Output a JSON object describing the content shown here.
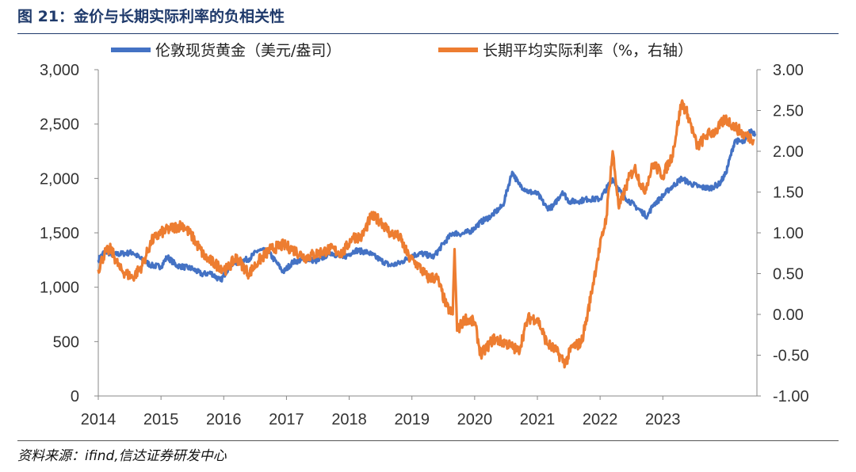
{
  "figure": {
    "title": "图 21：金价与长期实际利率的负相关性",
    "source": "资料来源：ifind,信达证券研发中心"
  },
  "chart_data": {
    "type": "line",
    "x_ticks": [
      "2014",
      "2015",
      "2016",
      "2017",
      "2018",
      "2019",
      "2020",
      "2021",
      "2022",
      "2023"
    ],
    "y_left": {
      "min": 0,
      "max": 3000,
      "ticks": [
        "0",
        "500",
        "1,000",
        "1,500",
        "2,000",
        "2,500",
        "3,000"
      ]
    },
    "y_right": {
      "min": -1.0,
      "max": 3.0,
      "ticks": [
        "-1.00",
        "-0.50",
        "0.00",
        "0.50",
        "1.00",
        "1.50",
        "2.00",
        "2.50",
        "3.00"
      ]
    },
    "legend_position": "top",
    "grid": false,
    "series": [
      {
        "name": "伦敦现货黄金（美元/盎司）",
        "axis": "left",
        "color": "#4472c4",
        "points": [
          [
            2014.0,
            1250
          ],
          [
            2014.1,
            1330
          ],
          [
            2014.25,
            1300
          ],
          [
            2014.4,
            1310
          ],
          [
            2014.55,
            1320
          ],
          [
            2014.7,
            1250
          ],
          [
            2014.85,
            1200
          ],
          [
            2015.0,
            1190
          ],
          [
            2015.1,
            1280
          ],
          [
            2015.25,
            1200
          ],
          [
            2015.5,
            1170
          ],
          [
            2015.65,
            1120
          ],
          [
            2015.8,
            1130
          ],
          [
            2015.95,
            1060
          ],
          [
            2016.1,
            1200
          ],
          [
            2016.25,
            1240
          ],
          [
            2016.4,
            1260
          ],
          [
            2016.55,
            1340
          ],
          [
            2016.7,
            1330
          ],
          [
            2016.85,
            1220
          ],
          [
            2016.95,
            1140
          ],
          [
            2017.1,
            1230
          ],
          [
            2017.3,
            1260
          ],
          [
            2017.5,
            1240
          ],
          [
            2017.7,
            1320
          ],
          [
            2017.9,
            1270
          ],
          [
            2018.1,
            1340
          ],
          [
            2018.3,
            1320
          ],
          [
            2018.5,
            1250
          ],
          [
            2018.65,
            1200
          ],
          [
            2018.8,
            1220
          ],
          [
            2019.0,
            1290
          ],
          [
            2019.15,
            1310
          ],
          [
            2019.35,
            1280
          ],
          [
            2019.5,
            1400
          ],
          [
            2019.65,
            1500
          ],
          [
            2019.8,
            1490
          ],
          [
            2019.95,
            1520
          ],
          [
            2020.1,
            1600
          ],
          [
            2020.25,
            1650
          ],
          [
            2020.45,
            1750
          ],
          [
            2020.6,
            2060
          ],
          [
            2020.7,
            1950
          ],
          [
            2020.85,
            1880
          ],
          [
            2021.0,
            1860
          ],
          [
            2021.15,
            1730
          ],
          [
            2021.25,
            1740
          ],
          [
            2021.4,
            1880
          ],
          [
            2021.5,
            1790
          ],
          [
            2021.65,
            1790
          ],
          [
            2021.8,
            1810
          ],
          [
            2022.0,
            1810
          ],
          [
            2022.2,
            2000
          ],
          [
            2022.35,
            1850
          ],
          [
            2022.55,
            1750
          ],
          [
            2022.75,
            1650
          ],
          [
            2022.85,
            1760
          ],
          [
            2022.95,
            1810
          ],
          [
            2023.1,
            1900
          ],
          [
            2023.3,
            2000
          ],
          [
            2023.45,
            1950
          ],
          [
            2023.6,
            1920
          ],
          [
            2023.75,
            1910
          ],
          [
            2023.9,
            1950
          ],
          [
            2024.0,
            2040
          ],
          [
            2024.15,
            2350
          ],
          [
            2024.3,
            2330
          ],
          [
            2024.4,
            2440
          ],
          [
            2024.48,
            2410
          ]
        ]
      },
      {
        "name": "长期平均实际利率（%，右轴）",
        "axis": "right",
        "color": "#ed7d31",
        "points": [
          [
            2014.0,
            0.55
          ],
          [
            2014.1,
            0.75
          ],
          [
            2014.2,
            0.8
          ],
          [
            2014.35,
            0.55
          ],
          [
            2014.55,
            0.45
          ],
          [
            2014.7,
            0.6
          ],
          [
            2014.85,
            0.9
          ],
          [
            2015.0,
            1.0
          ],
          [
            2015.15,
            1.05
          ],
          [
            2015.35,
            1.1
          ],
          [
            2015.5,
            0.95
          ],
          [
            2015.7,
            0.7
          ],
          [
            2015.9,
            0.6
          ],
          [
            2016.05,
            0.55
          ],
          [
            2016.2,
            0.7
          ],
          [
            2016.4,
            0.5
          ],
          [
            2016.55,
            0.65
          ],
          [
            2016.75,
            0.8
          ],
          [
            2016.95,
            0.85
          ],
          [
            2017.1,
            0.8
          ],
          [
            2017.3,
            0.7
          ],
          [
            2017.5,
            0.75
          ],
          [
            2017.7,
            0.8
          ],
          [
            2017.9,
            0.75
          ],
          [
            2018.05,
            0.95
          ],
          [
            2018.2,
            0.95
          ],
          [
            2018.35,
            1.2
          ],
          [
            2018.5,
            1.15
          ],
          [
            2018.65,
            1.0
          ],
          [
            2018.8,
            0.95
          ],
          [
            2018.95,
            0.7
          ],
          [
            2019.1,
            0.6
          ],
          [
            2019.25,
            0.45
          ],
          [
            2019.4,
            0.45
          ],
          [
            2019.55,
            0.1
          ],
          [
            2019.65,
            0.0
          ],
          [
            2019.68,
            0.8
          ],
          [
            2019.72,
            -0.2
          ],
          [
            2019.85,
            -0.05
          ],
          [
            2020.0,
            -0.1
          ],
          [
            2020.1,
            -0.5
          ],
          [
            2020.3,
            -0.3
          ],
          [
            2020.5,
            -0.35
          ],
          [
            2020.7,
            -0.45
          ],
          [
            2020.85,
            -0.05
          ],
          [
            2021.0,
            -0.05
          ],
          [
            2021.15,
            -0.35
          ],
          [
            2021.3,
            -0.45
          ],
          [
            2021.45,
            -0.6
          ],
          [
            2021.55,
            -0.4
          ],
          [
            2021.7,
            -0.35
          ],
          [
            2021.8,
            0.0
          ],
          [
            2021.95,
            0.65
          ],
          [
            2022.1,
            1.2
          ],
          [
            2022.2,
            2.0
          ],
          [
            2022.3,
            1.3
          ],
          [
            2022.45,
            1.65
          ],
          [
            2022.55,
            1.8
          ],
          [
            2022.7,
            1.5
          ],
          [
            2022.85,
            1.85
          ],
          [
            2023.0,
            1.7
          ],
          [
            2023.15,
            1.95
          ],
          [
            2023.3,
            2.6
          ],
          [
            2023.4,
            2.45
          ],
          [
            2023.55,
            2.05
          ],
          [
            2023.7,
            2.2
          ],
          [
            2023.85,
            2.25
          ],
          [
            2024.0,
            2.4
          ],
          [
            2024.15,
            2.3
          ],
          [
            2024.3,
            2.2
          ],
          [
            2024.45,
            2.15
          ]
        ]
      }
    ]
  }
}
